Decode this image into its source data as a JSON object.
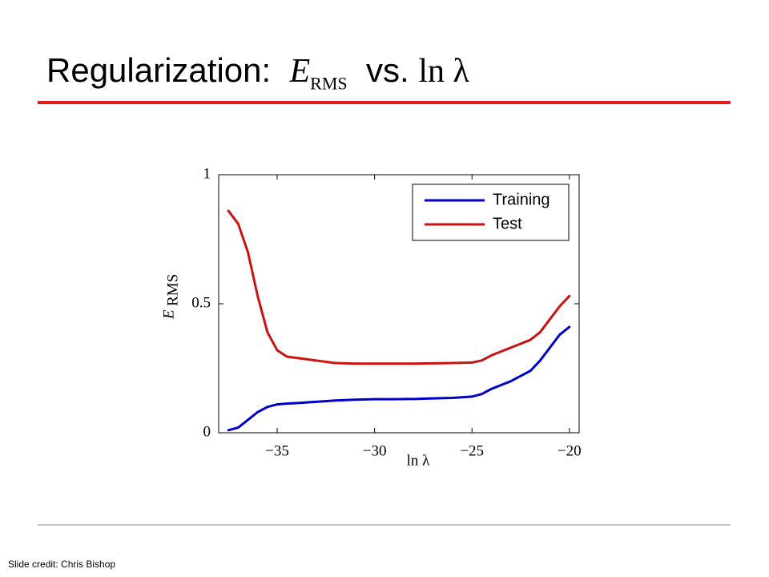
{
  "slide": {
    "title_parts": [
      "Regularization:",
      "E",
      "RMS",
      "vs.",
      "ln λ"
    ],
    "credit": "Slide credit: Chris Bishop"
  },
  "chart_data": {
    "type": "line",
    "xlabel": "ln λ",
    "ylabel": {
      "symbol": "E",
      "subscript": "RMS"
    },
    "x": [
      -37.5,
      -37,
      -36.5,
      -36,
      -35.5,
      -35,
      -34.5,
      -34,
      -33,
      -32,
      -31,
      -30,
      -29,
      -28,
      -27,
      -26,
      -25,
      -24.5,
      -24,
      -23,
      -22,
      -21.5,
      -21,
      -20.5,
      -20
    ],
    "series": [
      {
        "name": "Training",
        "color": "#0000cc",
        "values": [
          0.01,
          0.02,
          0.05,
          0.08,
          0.1,
          0.11,
          0.113,
          0.115,
          0.12,
          0.125,
          0.128,
          0.13,
          0.13,
          0.131,
          0.133,
          0.135,
          0.14,
          0.15,
          0.17,
          0.2,
          0.24,
          0.28,
          0.33,
          0.38,
          0.41
        ]
      },
      {
        "name": "Test",
        "color": "#cc1111",
        "values": [
          0.86,
          0.81,
          0.7,
          0.53,
          0.39,
          0.32,
          0.295,
          0.29,
          0.28,
          0.27,
          0.268,
          0.268,
          0.268,
          0.268,
          0.269,
          0.27,
          0.272,
          0.28,
          0.3,
          0.33,
          0.36,
          0.39,
          0.44,
          0.49,
          0.53
        ]
      }
    ],
    "xlim": [
      -38,
      -19.5
    ],
    "ylim": [
      0,
      1
    ],
    "xticks": [
      {
        "value": -35,
        "label": "−35"
      },
      {
        "value": -30,
        "label": "−30"
      },
      {
        "value": -25,
        "label": "−25"
      },
      {
        "value": -20,
        "label": "−20"
      }
    ],
    "yticks": [
      0,
      0.5,
      1
    ],
    "legend": "upper right"
  }
}
